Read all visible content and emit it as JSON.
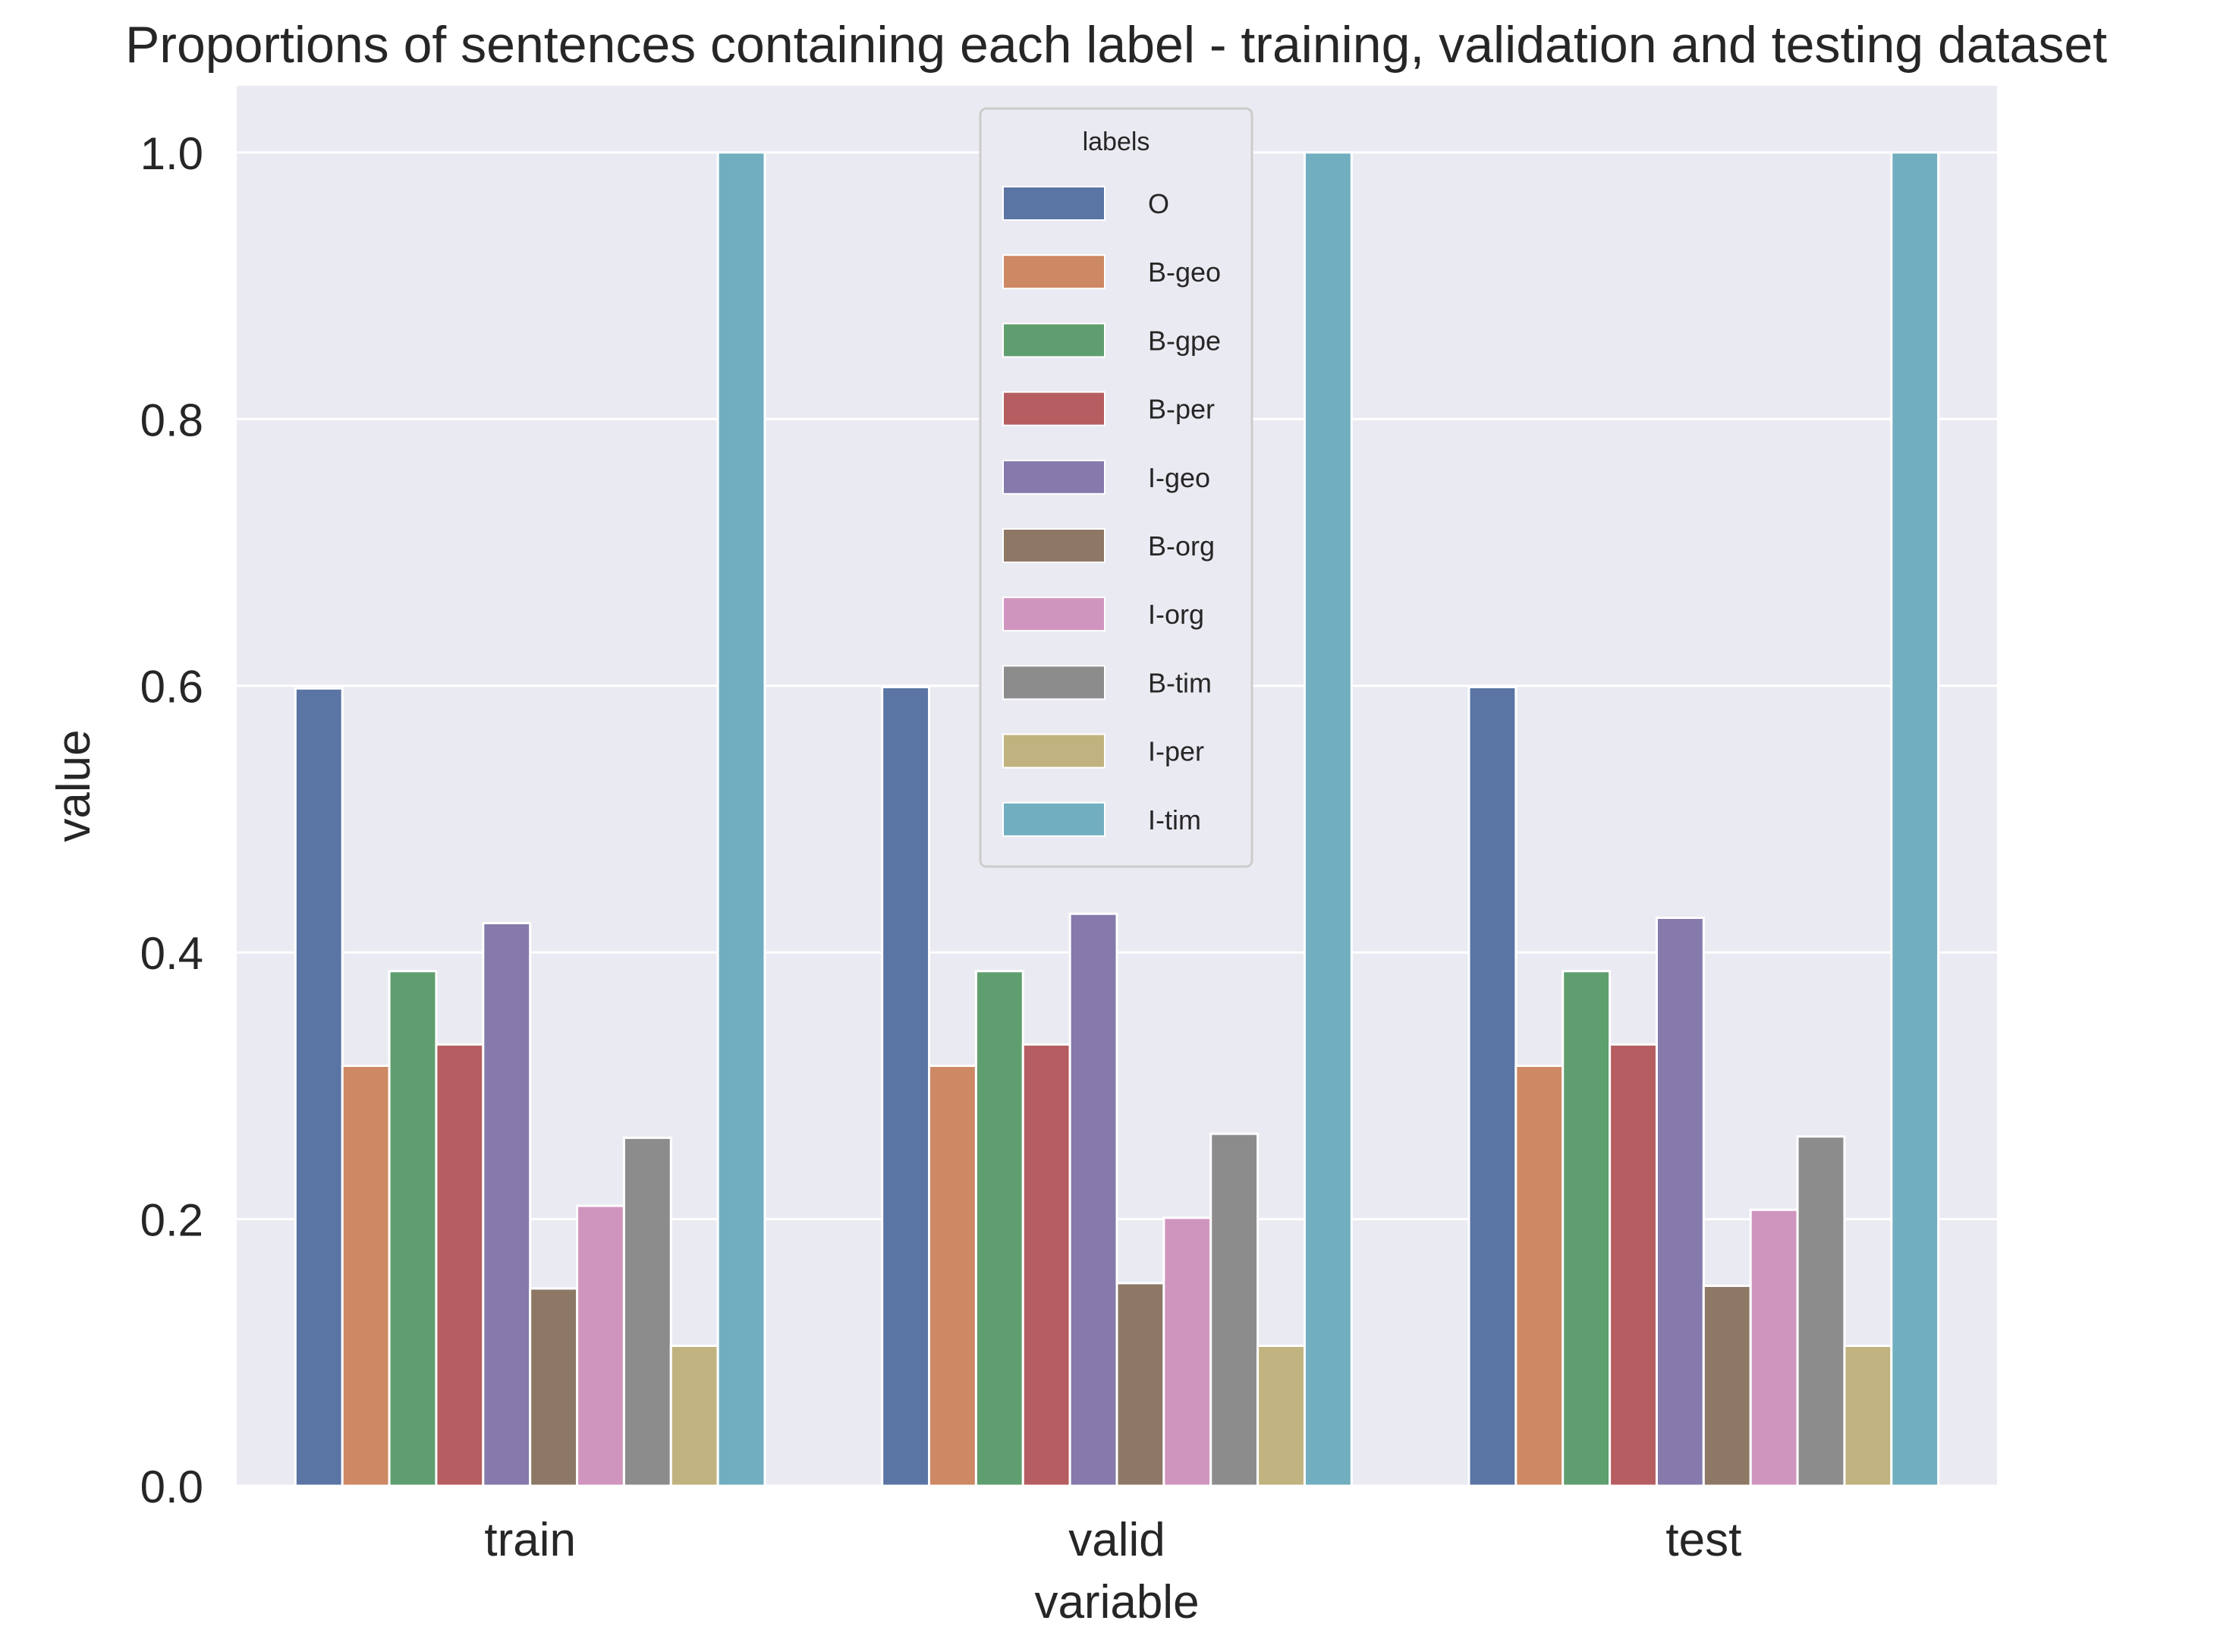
{
  "chart_data": {
    "type": "bar",
    "title": "Proportions of sentences containing each label - training, validation and testing dataset",
    "xlabel": "variable",
    "ylabel": "value",
    "categories": [
      "train",
      "valid",
      "test"
    ],
    "ylim": [
      0,
      1.05
    ],
    "yticks": [
      0.0,
      0.2,
      0.4,
      0.6,
      0.8,
      1.0
    ],
    "ytick_labels": [
      "0.0",
      "0.2",
      "0.4",
      "0.6",
      "0.8",
      "1.0"
    ],
    "grid": true,
    "background": "#eaeaf2",
    "grid_color": "#ffffff",
    "legend": {
      "title": "labels",
      "position": "top-center"
    },
    "series": [
      {
        "name": "O",
        "color": "#5a74a4",
        "values": [
          0.598,
          0.599,
          0.599
        ]
      },
      {
        "name": "B-geo",
        "color": "#cd8864",
        "values": [
          0.315,
          0.315,
          0.315
        ]
      },
      {
        "name": "B-gpe",
        "color": "#5f9e6e",
        "values": [
          0.386,
          0.386,
          0.386
        ]
      },
      {
        "name": "B-per",
        "color": "#b55d60",
        "values": [
          0.331,
          0.331,
          0.331
        ]
      },
      {
        "name": "I-geo",
        "color": "#857aab",
        "values": [
          0.422,
          0.429,
          0.426
        ]
      },
      {
        "name": "B-org",
        "color": "#8d7866",
        "values": [
          0.148,
          0.152,
          0.15
        ]
      },
      {
        "name": "I-org",
        "color": "#d095bf",
        "values": [
          0.21,
          0.201,
          0.207
        ]
      },
      {
        "name": "B-tim",
        "color": "#8c8c8c",
        "values": [
          0.261,
          0.264,
          0.262
        ]
      },
      {
        "name": "I-per",
        "color": "#c1b37f",
        "values": [
          0.105,
          0.105,
          0.105
        ]
      },
      {
        "name": "I-tim",
        "color": "#71aec0",
        "values": [
          1.0,
          1.0,
          1.0
        ]
      }
    ]
  }
}
